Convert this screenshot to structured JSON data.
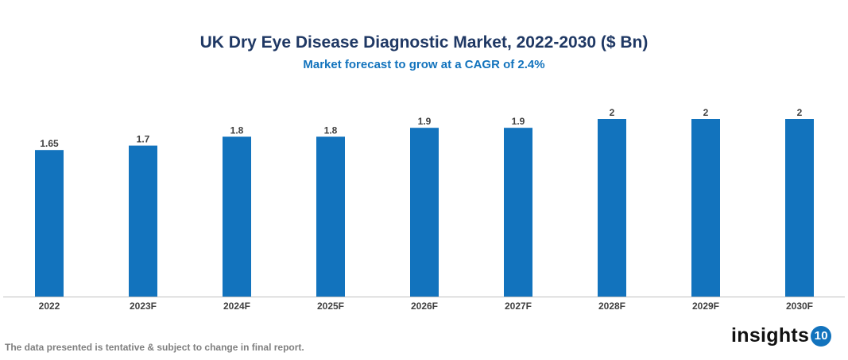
{
  "chart_data": {
    "type": "bar",
    "title": "UK Dry Eye Disease Diagnostic Market, 2022-2030 ($ Bn)",
    "subtitle": "Market forecast to grow at a CAGR of 2.4%",
    "categories": [
      "2022",
      "2023F",
      "2024F",
      "2025F",
      "2026F",
      "2027F",
      "2028F",
      "2029F",
      "2030F"
    ],
    "values": [
      1.65,
      1.7,
      1.8,
      1.8,
      1.9,
      1.9,
      2,
      2,
      2
    ],
    "xlabel": "",
    "ylabel": "",
    "ylim": [
      0,
      2
    ],
    "grid": false,
    "bar_color": "#1273bd"
  },
  "footer": {
    "note": "The data presented is tentative & subject to change in final report.",
    "logo_text": "insights",
    "logo_badge": "10"
  }
}
